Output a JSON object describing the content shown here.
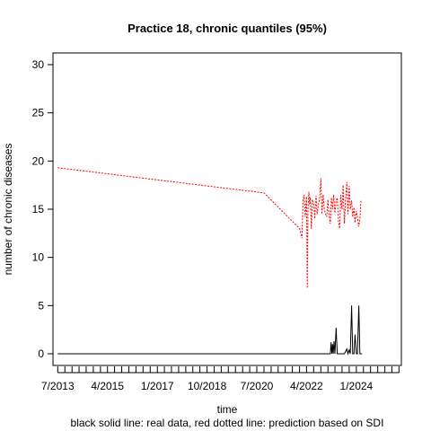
{
  "chart_data": {
    "type": "line",
    "title": "Practice 18, chronic quantiles (95%)",
    "xlabel": "time",
    "ylabel": "number of chronic diseases",
    "caption": "black solid line: real data, red dotted line: prediction based on SDI",
    "ylim": [
      0,
      30
    ],
    "y_ticks": [
      0,
      5,
      10,
      15,
      20,
      25,
      30
    ],
    "xlim": [
      "2013-05-01",
      "2025-08-01"
    ],
    "x_tick_labels": [
      "7/2013",
      "4/2015",
      "1/2017",
      "10/2018",
      "7/2020",
      "4/2022",
      "1/2024"
    ],
    "x_tick_dates": [
      "2013-07-01",
      "2015-04-01",
      "2017-01-01",
      "2018-10-01",
      "2020-07-01",
      "2022-04-01",
      "2024-01-01"
    ],
    "grid": false,
    "colors": {
      "real": "#000000",
      "predicted": "#ff0000"
    },
    "series": [
      {
        "name": "real data",
        "style": "solid",
        "x": [
          "2013-07-01",
          "2023-02-01",
          "2023-02-10",
          "2023-02-20",
          "2023-03-01",
          "2023-03-10",
          "2023-03-20",
          "2023-04-01",
          "2023-04-15",
          "2023-05-01",
          "2023-06-01",
          "2023-07-01",
          "2023-08-01",
          "2023-09-01",
          "2023-09-15",
          "2023-10-01",
          "2023-10-15",
          "2023-11-01",
          "2023-11-15",
          "2023-12-01",
          "2023-12-15",
          "2024-01-01",
          "2024-01-15",
          "2024-02-01",
          "2024-02-15",
          "2024-03-01",
          "2024-03-15"
        ],
        "values": [
          0,
          0,
          1.2,
          0,
          1.0,
          0,
          1.3,
          0,
          2.7,
          0,
          0,
          0,
          0,
          0.5,
          0,
          0.4,
          0,
          5.0,
          0,
          0,
          2.0,
          0,
          0,
          5.0,
          0,
          0,
          0
        ]
      },
      {
        "name": "prediction based on SDI",
        "style": "dotted",
        "x": [
          "2013-07-01",
          "2020-10-01",
          "2022-01-01",
          "2022-02-01",
          "2022-02-15",
          "2022-03-01",
          "2022-03-15",
          "2022-04-01",
          "2022-04-10",
          "2022-04-20",
          "2022-05-01",
          "2022-05-10",
          "2022-05-20",
          "2022-06-01",
          "2022-06-15",
          "2022-07-01",
          "2022-07-15",
          "2022-08-01",
          "2022-08-15",
          "2022-09-01",
          "2022-09-15",
          "2022-10-01",
          "2022-10-15",
          "2022-11-01",
          "2022-11-15",
          "2022-12-01",
          "2022-12-15",
          "2023-01-01",
          "2023-01-15",
          "2023-02-01",
          "2023-02-15",
          "2023-03-01",
          "2023-03-15",
          "2023-04-01",
          "2023-04-15",
          "2023-05-01",
          "2023-05-15",
          "2023-06-01",
          "2023-06-15",
          "2023-07-01",
          "2023-07-15",
          "2023-08-01",
          "2023-08-15",
          "2023-09-01",
          "2023-09-15",
          "2023-10-01",
          "2023-10-15",
          "2023-11-01",
          "2023-11-15",
          "2023-12-01",
          "2023-12-15",
          "2024-01-01",
          "2024-01-15",
          "2024-02-01",
          "2024-02-15",
          "2024-03-01"
        ],
        "values": [
          19.3,
          16.7,
          13.0,
          12.0,
          16.0,
          16.5,
          14.2,
          16.3,
          6.8,
          15.0,
          16.8,
          15.5,
          16.2,
          13.0,
          16.0,
          15.6,
          14.0,
          16.4,
          14.5,
          15.5,
          16.0,
          18.2,
          14.5,
          16.5,
          15.0,
          14.5,
          14.2,
          16.0,
          14.4,
          13.5,
          16.2,
          15.0,
          16.5,
          14.6,
          15.8,
          16.2,
          13.8,
          13.0,
          16.5,
          15.0,
          17.5,
          13.5,
          16.0,
          17.8,
          14.5,
          17.4,
          15.0,
          15.9,
          14.2,
          15.2,
          13.6,
          14.8,
          14.2,
          13.2,
          14.0,
          16.0
        ]
      }
    ]
  }
}
